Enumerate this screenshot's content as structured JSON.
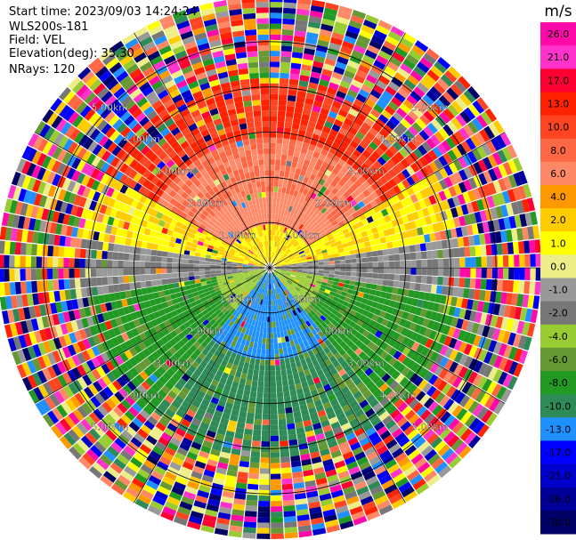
{
  "header": {
    "start_time": "Start time: 2023/09/03 14:24:24",
    "device": "WLS200s-181",
    "field": "Field: VEL",
    "elevation": "Elevation(deg): 35.30",
    "nrays": "NRays: 120"
  },
  "chart_data": {
    "type": "heatmap",
    "subtype": "polar-ppi",
    "title": "",
    "field": "VEL",
    "units": "m/s",
    "nrays": 120,
    "elevation_deg": 35.3,
    "range_max_km": 6.0,
    "range_rings_km": [
      1.0,
      2.0,
      3.0,
      4.0,
      5.0
    ],
    "ring_labels": [
      "1.00km",
      "2.00km",
      "3.00km",
      "4.00km",
      "5.00km"
    ],
    "colorbar": {
      "ticks": [
        "26.0",
        "21.0",
        "17.0",
        "13.0",
        "10.0",
        "8.0",
        "6.0",
        "4.0",
        "2.0",
        "1.0",
        "0.0",
        "-1.0",
        "-2.0",
        "-4.0",
        "-6.0",
        "-8.0",
        "-10.0",
        "-13.0",
        "-17.0",
        "-21.0",
        "-26.0",
        "-30.0"
      ],
      "colors": [
        "#ff0aa8",
        "#ff33cc",
        "#ff0033",
        "#ff2200",
        "#ff4422",
        "#ff6644",
        "#ff8866",
        "#ff9900",
        "#ffcc00",
        "#ffff00",
        "#eeee88",
        "#999999",
        "#777777",
        "#99cc33",
        "#669933",
        "#229922",
        "#2e8b57",
        "#1e90ff",
        "#0000ff",
        "#0000cc",
        "#000099",
        "#000066"
      ]
    }
  }
}
